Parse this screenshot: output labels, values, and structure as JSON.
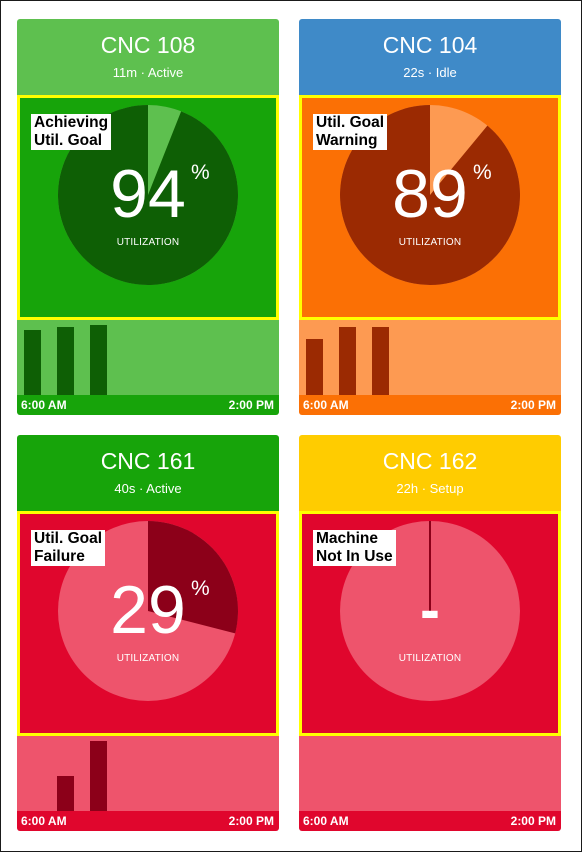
{
  "machines": [
    {
      "name": "CNC 108",
      "subtitle": "11m · Active",
      "status_label": "Achieving\nUtil. Goal",
      "utilization_value": "94",
      "utilization_percent": 94,
      "percent_symbol": "%",
      "utilization_caption": "UTILIZATION",
      "time_start": "6:00 AM",
      "time_end": "2:00 PM",
      "bar_values": [
        0.86,
        0.9,
        0.93
      ],
      "colors": {
        "header": "#5ec04f",
        "panel": "#17a40a",
        "pie_main": "#0e5f05",
        "pie_rest": "#5ec04f",
        "bar_bg": "#5ec04f",
        "bar": "#0e5f05",
        "axis": "#17a40a"
      }
    },
    {
      "name": "CNC 104",
      "subtitle": "22s · Idle",
      "status_label": "Util. Goal\nWarning",
      "utilization_value": "89",
      "utilization_percent": 89,
      "percent_symbol": "%",
      "utilization_caption": "UTILIZATION",
      "time_start": "6:00 AM",
      "time_end": "2:00 PM",
      "bar_values": [
        0.74,
        0.91,
        0.91
      ],
      "colors": {
        "header": "#3f8ac8",
        "panel": "#fb7005",
        "pie_main": "#9b2a02",
        "pie_rest": "#fd9a52",
        "bar_bg": "#fd9a52",
        "bar": "#9b2a02",
        "axis": "#fb7005"
      }
    },
    {
      "name": "CNC 161",
      "subtitle": "40s · Active",
      "status_label": "Util. Goal\nFailure",
      "utilization_value": "29",
      "utilization_percent": 29,
      "percent_symbol": "%",
      "utilization_caption": "UTILIZATION",
      "time_start": "6:00 AM",
      "time_end": "2:00 PM",
      "bar_values": [
        0.0,
        0.47,
        0.93
      ],
      "colors": {
        "header": "#17a40a",
        "panel": "#e0062d",
        "pie_main": "#8c0019",
        "pie_rest": "#ee546c",
        "bar_bg": "#ee546c",
        "bar": "#8c0019",
        "axis": "#e0062d"
      }
    },
    {
      "name": "CNC 162",
      "subtitle": "22h · Setup",
      "status_label": "Machine\nNot In Use",
      "utilization_value": "-",
      "utilization_percent": 0,
      "percent_symbol": "",
      "utilization_caption": "UTILIZATION",
      "time_start": "6:00 AM",
      "time_end": "2:00 PM",
      "bar_values": [
        0,
        0,
        0
      ],
      "colors": {
        "header": "#ffcc00",
        "panel": "#e0062d",
        "pie_main": "#8c0019",
        "pie_rest": "#ee546c",
        "bar_bg": "#ee546c",
        "bar": "#8c0019",
        "axis": "#e0062d"
      }
    }
  ]
}
